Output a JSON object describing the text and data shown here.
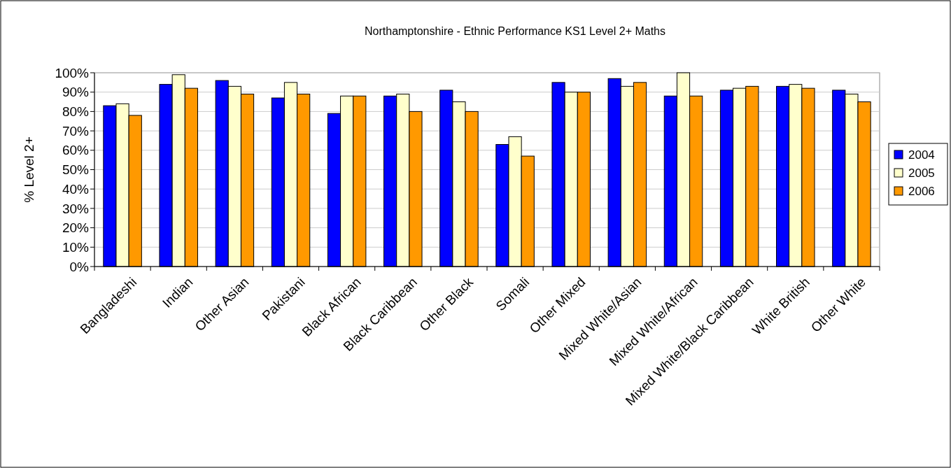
{
  "chart_data": {
    "type": "bar",
    "title": "Northamptonshire - Ethnic Performance KS1 Level 2+ Maths",
    "ylabel": "% Level 2+",
    "categories": [
      "Bangladeshi",
      "Indian",
      "Other Asian",
      "Pakistani",
      "Black African",
      "Black Caribbean",
      "Other Black",
      "Somali",
      "Other Mixed",
      "Mixed White/Asian",
      "Mixed White/African",
      "Mixed White/Black Caribbean",
      "White British",
      "Other White"
    ],
    "series": [
      {
        "name": "2004",
        "color": "#0000ff",
        "values": [
          83,
          94,
          96,
          87,
          79,
          88,
          91,
          63,
          95,
          97,
          88,
          91,
          93,
          91
        ]
      },
      {
        "name": "2005",
        "color": "#ffffcc",
        "values": [
          84,
          99,
          93,
          95,
          88,
          89,
          85,
          67,
          90,
          93,
          100,
          92,
          94,
          89
        ]
      },
      {
        "name": "2006",
        "color": "#ff9900",
        "values": [
          78,
          92,
          89,
          89,
          88,
          80,
          80,
          57,
          90,
          95,
          88,
          93,
          92,
          85
        ]
      }
    ],
    "ylim": [
      0,
      100
    ],
    "yticks": [
      {
        "value": 0,
        "label": "0%"
      },
      {
        "value": 10,
        "label": "10%"
      },
      {
        "value": 20,
        "label": "20%"
      },
      {
        "value": 30,
        "label": "30%"
      },
      {
        "value": 40,
        "label": "40%"
      },
      {
        "value": 50,
        "label": "50%"
      },
      {
        "value": 60,
        "label": "60%"
      },
      {
        "value": 70,
        "label": "70%"
      },
      {
        "value": 80,
        "label": "80%"
      },
      {
        "value": 90,
        "label": "90%"
      },
      {
        "value": 100,
        "label": "100%"
      }
    ],
    "grid": "y",
    "legend": "right"
  }
}
